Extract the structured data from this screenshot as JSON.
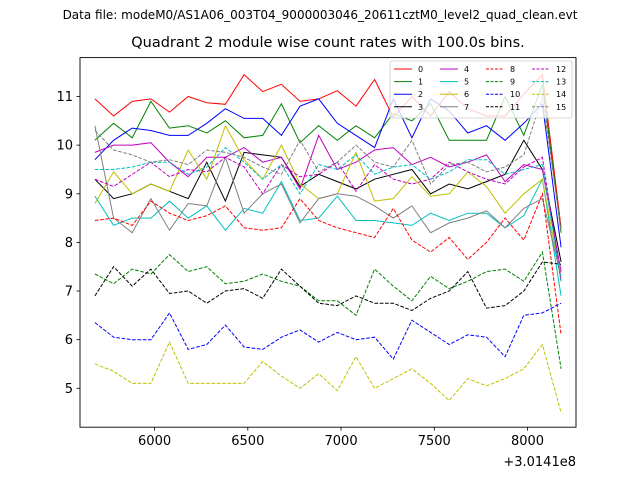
{
  "suptitle": "Data file: modeM0/AS1A06_003T04_9000003046_20611cztM0_level2_quad_clean.evt",
  "chart_data": {
    "type": "line",
    "title": "Quadrant 2 module wise count rates with 100.0s bins.",
    "xlabel": "",
    "ylabel": "",
    "x_offset_label": "+3.0141e8",
    "xlim": [
      5600,
      8260
    ],
    "ylim": [
      4.2,
      11.8
    ],
    "xticks": [
      6000,
      6500,
      7000,
      7500,
      8000
    ],
    "yticks": [
      5,
      6,
      7,
      8,
      9,
      10,
      11
    ],
    "legend_loc": "upper-right",
    "x": [
      5680,
      5780,
      5880,
      5980,
      6080,
      6180,
      6280,
      6380,
      6480,
      6580,
      6680,
      6780,
      6880,
      6980,
      7080,
      7180,
      7280,
      7380,
      7480,
      7580,
      7680,
      7780,
      7880,
      7980,
      8080,
      8180
    ],
    "series": [
      {
        "name": "0",
        "color": "#ff0000",
        "dash": "solid",
        "values": [
          10.95,
          10.6,
          10.9,
          10.95,
          10.68,
          11.0,
          10.87,
          10.84,
          11.45,
          11.1,
          11.25,
          10.9,
          10.95,
          11.12,
          10.8,
          11.35,
          10.57,
          11.0,
          10.6,
          11.1,
          10.75,
          10.6,
          10.6,
          11.05,
          11.45,
          8.3
        ]
      },
      {
        "name": "1",
        "color": "#008000",
        "dash": "solid",
        "values": [
          10.1,
          10.45,
          10.15,
          10.9,
          10.35,
          10.4,
          10.25,
          10.5,
          10.15,
          10.2,
          10.85,
          10.05,
          10.4,
          10.1,
          10.4,
          10.15,
          10.65,
          10.5,
          10.85,
          10.1,
          10.1,
          10.1,
          11.0,
          10.2,
          11.25,
          8.2
        ]
      },
      {
        "name": "2",
        "color": "#0000ff",
        "dash": "solid",
        "values": [
          9.7,
          10.1,
          10.35,
          10.3,
          10.2,
          10.2,
          10.45,
          10.75,
          10.55,
          10.55,
          10.2,
          10.8,
          10.95,
          10.45,
          10.2,
          9.95,
          10.95,
          10.15,
          10.95,
          10.7,
          10.25,
          10.4,
          10.1,
          10.45,
          10.85,
          7.9
        ]
      },
      {
        "name": "3",
        "color": "#000000",
        "dash": "solid",
        "values": [
          9.3,
          8.9,
          9.0,
          9.2,
          9.05,
          8.9,
          9.65,
          8.85,
          9.85,
          9.8,
          9.75,
          9.15,
          9.4,
          9.25,
          9.1,
          9.3,
          9.4,
          9.5,
          9.0,
          9.2,
          9.1,
          9.25,
          9.4,
          10.1,
          9.5,
          7.6
        ]
      },
      {
        "name": "4",
        "color": "#c000c0",
        "dash": "solid",
        "values": [
          9.85,
          10.0,
          10.0,
          10.05,
          9.65,
          9.35,
          9.75,
          9.75,
          9.95,
          9.65,
          9.75,
          9.1,
          10.2,
          9.5,
          9.65,
          9.9,
          9.95,
          9.6,
          9.75,
          9.55,
          9.65,
          9.8,
          9.25,
          9.6,
          9.5,
          7.4
        ]
      },
      {
        "name": "5",
        "color": "#00c0c0",
        "dash": "solid",
        "values": [
          8.95,
          8.35,
          8.5,
          8.5,
          8.85,
          8.5,
          8.75,
          8.25,
          8.7,
          8.6,
          9.25,
          8.45,
          8.5,
          8.95,
          8.45,
          8.45,
          8.4,
          8.35,
          8.6,
          8.45,
          8.6,
          8.6,
          8.3,
          8.55,
          9.3,
          6.9
        ]
      },
      {
        "name": "6",
        "color": "#c0c000",
        "dash": "solid",
        "values": [
          8.8,
          9.45,
          9.0,
          9.2,
          9.05,
          9.9,
          9.3,
          10.4,
          9.7,
          9.3,
          10.0,
          9.2,
          8.9,
          9.0,
          9.85,
          8.85,
          8.9,
          9.35,
          8.95,
          9.0,
          9.45,
          9.15,
          8.6,
          9.0,
          9.3,
          7.2
        ]
      },
      {
        "name": "7",
        "color": "#808080",
        "dash": "solid",
        "values": [
          10.4,
          8.5,
          8.2,
          8.9,
          8.25,
          8.8,
          8.75,
          9.75,
          8.6,
          9.0,
          9.2,
          8.4,
          8.9,
          9.0,
          8.95,
          8.75,
          8.5,
          8.75,
          8.2,
          8.4,
          8.5,
          8.65,
          8.3,
          8.7,
          8.9,
          7.3
        ]
      },
      {
        "name": "8",
        "color": "#ff0000",
        "dash": "dashed",
        "values": [
          8.45,
          8.5,
          8.35,
          8.85,
          8.6,
          8.45,
          8.55,
          8.75,
          8.3,
          8.25,
          8.3,
          8.9,
          8.45,
          8.3,
          8.2,
          8.1,
          8.7,
          8.05,
          7.8,
          8.1,
          7.65,
          8.0,
          8.5,
          8.05,
          9.0,
          6.1
        ]
      },
      {
        "name": "9",
        "color": "#008000",
        "dash": "dashed",
        "values": [
          7.35,
          7.15,
          7.45,
          7.35,
          7.75,
          7.4,
          7.5,
          7.15,
          7.2,
          7.35,
          7.2,
          7.1,
          6.8,
          6.8,
          6.5,
          7.45,
          7.1,
          6.8,
          7.3,
          7.05,
          7.2,
          7.4,
          7.45,
          7.2,
          7.8,
          5.4
        ]
      },
      {
        "name": "10",
        "color": "#0000ff",
        "dash": "dashed",
        "values": [
          6.35,
          6.05,
          6.0,
          6.0,
          6.55,
          5.8,
          5.9,
          6.3,
          5.85,
          5.8,
          6.05,
          6.2,
          5.95,
          6.15,
          6.0,
          6.05,
          5.6,
          6.4,
          6.15,
          5.9,
          6.1,
          6.05,
          5.65,
          6.5,
          6.55,
          6.75
        ]
      },
      {
        "name": "11",
        "color": "#000000",
        "dash": "dashed",
        "values": [
          6.9,
          7.5,
          7.1,
          7.45,
          6.95,
          7.0,
          6.75,
          7.0,
          7.05,
          6.85,
          7.45,
          7.1,
          6.75,
          6.7,
          6.9,
          6.75,
          6.75,
          6.6,
          6.85,
          7.0,
          7.4,
          6.65,
          6.7,
          7.0,
          7.6,
          7.55
        ]
      },
      {
        "name": "12",
        "color": "#c000c0",
        "dash": "dashed",
        "values": [
          9.3,
          9.15,
          9.4,
          9.65,
          9.35,
          9.5,
          9.45,
          9.75,
          9.55,
          9.0,
          9.6,
          9.35,
          9.4,
          9.65,
          9.05,
          9.6,
          9.3,
          9.2,
          9.3,
          9.65,
          9.45,
          9.3,
          9.2,
          9.55,
          9.75,
          7.2
        ]
      },
      {
        "name": "13",
        "color": "#00c0c0",
        "dash": "dashed",
        "values": [
          9.5,
          9.5,
          9.55,
          9.65,
          9.65,
          9.4,
          9.55,
          9.95,
          9.65,
          9.3,
          9.6,
          9.0,
          9.6,
          9.5,
          9.8,
          9.4,
          9.55,
          9.6,
          9.3,
          9.45,
          9.7,
          9.7,
          9.4,
          9.5,
          9.6,
          7.2
        ]
      },
      {
        "name": "14",
        "color": "#c0c000",
        "dash": "dashed",
        "values": [
          5.5,
          5.35,
          5.1,
          5.1,
          5.95,
          5.1,
          5.1,
          5.1,
          5.1,
          5.55,
          5.25,
          5.0,
          5.3,
          4.95,
          5.65,
          5.0,
          5.2,
          5.4,
          5.1,
          4.75,
          5.2,
          5.05,
          5.2,
          5.4,
          5.9,
          4.5
        ]
      },
      {
        "name": "15",
        "color": "#808080",
        "dash": "dashed",
        "values": [
          10.3,
          9.9,
          9.8,
          9.65,
          9.7,
          9.6,
          9.9,
          9.85,
          9.75,
          9.55,
          9.4,
          10.1,
          9.45,
          9.65,
          10.0,
          9.65,
          9.55,
          10.1,
          9.2,
          9.6,
          9.65,
          9.45,
          9.55,
          9.8,
          11.0,
          8.25
        ]
      }
    ]
  }
}
